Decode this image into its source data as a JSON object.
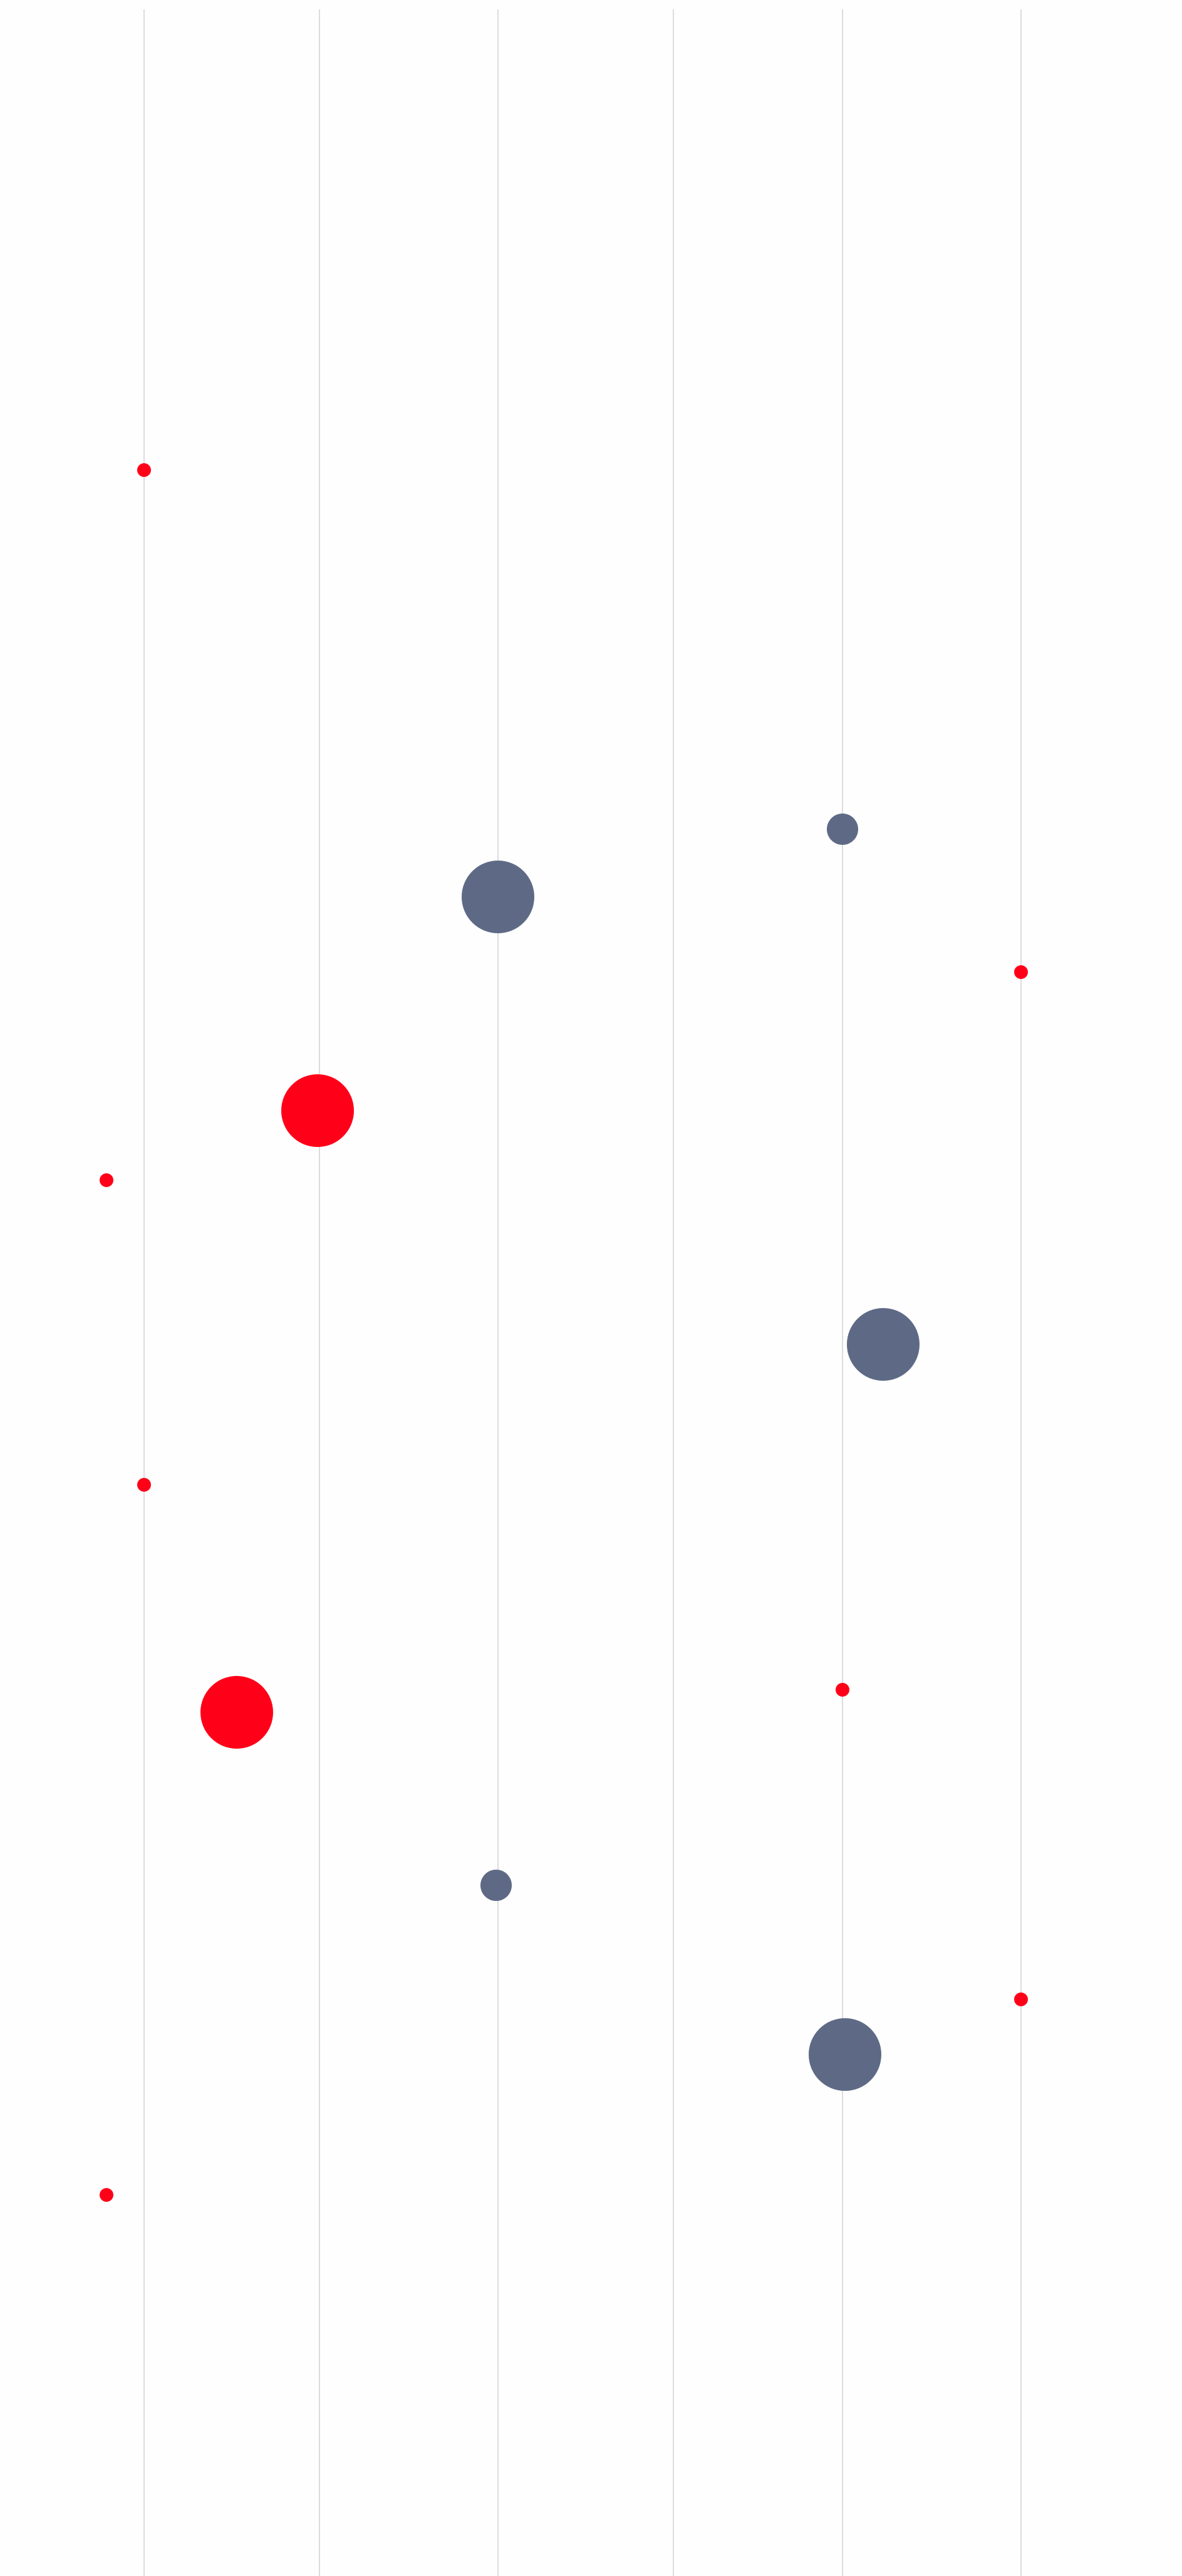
{
  "colors": {
    "background": "#fefefe",
    "gridline": "#dcdcdc",
    "accent_red": "#ff0019",
    "slate": "#5e6a85"
  },
  "vertical_lines": 6,
  "dots": [
    {
      "color": "accent_red",
      "size": "small"
    },
    {
      "color": "slate",
      "size": "medium"
    },
    {
      "color": "slate",
      "size": "large"
    },
    {
      "color": "accent_red",
      "size": "small"
    },
    {
      "color": "accent_red",
      "size": "large"
    },
    {
      "color": "accent_red",
      "size": "small"
    },
    {
      "color": "slate",
      "size": "large"
    },
    {
      "color": "accent_red",
      "size": "small"
    },
    {
      "color": "accent_red",
      "size": "large"
    },
    {
      "color": "accent_red",
      "size": "small"
    },
    {
      "color": "slate",
      "size": "medium"
    },
    {
      "color": "accent_red",
      "size": "small"
    },
    {
      "color": "slate",
      "size": "large"
    },
    {
      "color": "accent_red",
      "size": "small"
    }
  ]
}
